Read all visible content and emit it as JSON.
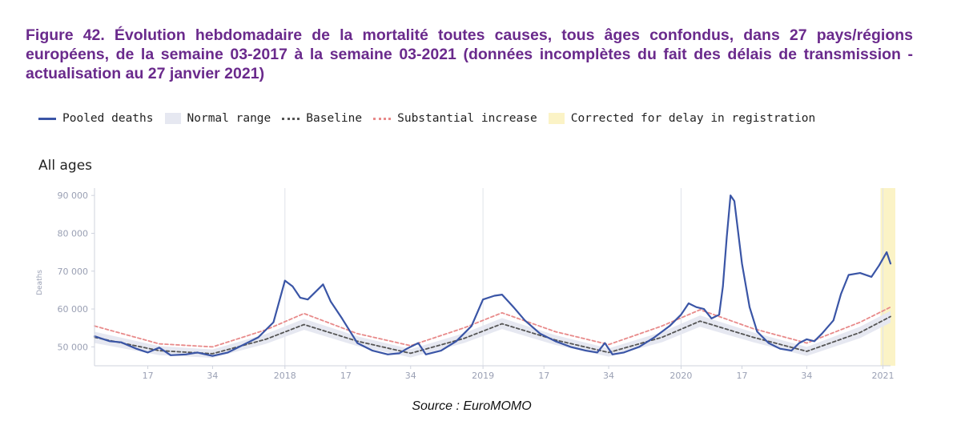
{
  "figure": {
    "title": "Figure 42. Évolution hebdomadaire de la mortalité toutes causes, tous âges confondus, dans 27 pays/régions européens, de la semaine 03-2017 à la semaine 03-2021 (données incomplètes du fait des délais de transmission - actualisation au 27 janvier 2021)",
    "source": "Source : EuroMOMO"
  },
  "legend": {
    "pooled": "Pooled deaths",
    "normal": "Normal range",
    "baseline": "Baseline",
    "substantial": "Substantial increase",
    "corrected": "Corrected for delay in registration"
  },
  "colors": {
    "pooled": "#3a55a6",
    "baseline": "#555555",
    "substantial": "#e88a8a",
    "normal": "#e6e8f1",
    "corrected": "#fbf3c6"
  },
  "chart_data": {
    "type": "line",
    "title": "All ages",
    "ylabel": "Deaths",
    "xlabel": "",
    "ylim": [
      45000,
      93000
    ],
    "x_unit": "ISO week (year-week)",
    "x_range": [
      "2017-03",
      "2021-03"
    ],
    "y_ticks": [
      50000,
      60000,
      70000,
      80000,
      90000
    ],
    "y_tick_labels": [
      "50 000",
      "60 000",
      "70 000",
      "80 000",
      "90 000"
    ],
    "x_tick_labels": [
      {
        "x": "2017-17",
        "label": "17"
      },
      {
        "x": "2017-34",
        "label": "34"
      },
      {
        "x": "2018-01",
        "label": "2018"
      },
      {
        "x": "2018-17",
        "label": "17"
      },
      {
        "x": "2018-34",
        "label": "34"
      },
      {
        "x": "2019-01",
        "label": "2019"
      },
      {
        "x": "2019-17",
        "label": "17"
      },
      {
        "x": "2019-34",
        "label": "34"
      },
      {
        "x": "2020-01",
        "label": "2020"
      },
      {
        "x": "2020-17",
        "label": "17"
      },
      {
        "x": "2020-34",
        "label": "34"
      },
      {
        "x": "2021-01",
        "label": "2021"
      }
    ],
    "grid": "vertical lines at year starts",
    "legend_position": "top",
    "corrected_region": [
      "2021-01",
      "2021-03"
    ],
    "series": [
      {
        "name": "Pooled deaths",
        "points": [
          [
            "2017-03",
            52800
          ],
          [
            "2017-07",
            51500
          ],
          [
            "2017-10",
            51200
          ],
          [
            "2017-14",
            49500
          ],
          [
            "2017-17",
            48500
          ],
          [
            "2017-20",
            49800
          ],
          [
            "2017-23",
            47800
          ],
          [
            "2017-27",
            48000
          ],
          [
            "2017-30",
            48500
          ],
          [
            "2017-34",
            47600
          ],
          [
            "2017-38",
            48500
          ],
          [
            "2017-42",
            50500
          ],
          [
            "2017-46",
            52500
          ],
          [
            "2017-50",
            56500
          ],
          [
            "2018-01",
            67500
          ],
          [
            "2018-03",
            66000
          ],
          [
            "2018-05",
            63000
          ],
          [
            "2018-07",
            62500
          ],
          [
            "2018-09",
            64500
          ],
          [
            "2018-11",
            66500
          ],
          [
            "2018-13",
            62000
          ],
          [
            "2018-16",
            57500
          ],
          [
            "2018-20",
            51000
          ],
          [
            "2018-24",
            49000
          ],
          [
            "2018-28",
            48000
          ],
          [
            "2018-31",
            48300
          ],
          [
            "2018-33",
            49500
          ],
          [
            "2018-36",
            51000
          ],
          [
            "2018-38",
            48000
          ],
          [
            "2018-42",
            49000
          ],
          [
            "2018-46",
            51500
          ],
          [
            "2018-50",
            55500
          ],
          [
            "2019-01",
            62500
          ],
          [
            "2019-04",
            63500
          ],
          [
            "2019-06",
            63800
          ],
          [
            "2019-09",
            60500
          ],
          [
            "2019-12",
            57000
          ],
          [
            "2019-16",
            53500
          ],
          [
            "2019-20",
            51500
          ],
          [
            "2019-24",
            50000
          ],
          [
            "2019-28",
            49000
          ],
          [
            "2019-31",
            48500
          ],
          [
            "2019-33",
            51000
          ],
          [
            "2019-35",
            48000
          ],
          [
            "2019-38",
            48500
          ],
          [
            "2019-42",
            50000
          ],
          [
            "2019-46",
            52500
          ],
          [
            "2019-50",
            55500
          ],
          [
            "2020-01",
            58500
          ],
          [
            "2020-03",
            61500
          ],
          [
            "2020-05",
            60500
          ],
          [
            "2020-07",
            60000
          ],
          [
            "2020-09",
            57500
          ],
          [
            "2020-11",
            58500
          ],
          [
            "2020-12",
            66000
          ],
          [
            "2020-13",
            79000
          ],
          [
            "2020-14",
            90000
          ],
          [
            "2020-15",
            88500
          ],
          [
            "2020-17",
            72000
          ],
          [
            "2020-19",
            60500
          ],
          [
            "2020-21",
            54000
          ],
          [
            "2020-24",
            51000
          ],
          [
            "2020-27",
            49500
          ],
          [
            "2020-30",
            49000
          ],
          [
            "2020-32",
            51000
          ],
          [
            "2020-34",
            52000
          ],
          [
            "2020-36",
            51500
          ],
          [
            "2020-38",
            53500
          ],
          [
            "2020-41",
            57000
          ],
          [
            "2020-43",
            64000
          ],
          [
            "2020-45",
            69000
          ],
          [
            "2020-48",
            69500
          ],
          [
            "2020-51",
            68500
          ],
          [
            "2020-53",
            71500
          ],
          [
            "2021-02",
            75000
          ],
          [
            "2021-03",
            72000
          ]
        ]
      },
      {
        "name": "Baseline",
        "points": [
          [
            "2017-03",
            52500
          ],
          [
            "2017-20",
            49000
          ],
          [
            "2017-34",
            48200
          ],
          [
            "2017-48",
            52000
          ],
          [
            "2018-06",
            55900
          ],
          [
            "2018-20",
            51500
          ],
          [
            "2018-34",
            48300
          ],
          [
            "2018-48",
            52200
          ],
          [
            "2019-06",
            56100
          ],
          [
            "2019-20",
            51800
          ],
          [
            "2019-34",
            48500
          ],
          [
            "2019-48",
            52500
          ],
          [
            "2020-06",
            56800
          ],
          [
            "2020-20",
            52500
          ],
          [
            "2020-34",
            48800
          ],
          [
            "2020-48",
            53800
          ],
          [
            "2021-03",
            58000
          ]
        ]
      },
      {
        "name": "Substantial increase",
        "points": [
          [
            "2017-03",
            55500
          ],
          [
            "2017-20",
            50800
          ],
          [
            "2017-34",
            50000
          ],
          [
            "2017-48",
            54500
          ],
          [
            "2018-06",
            58800
          ],
          [
            "2018-20",
            53500
          ],
          [
            "2018-34",
            50300
          ],
          [
            "2018-48",
            55000
          ],
          [
            "2019-06",
            59000
          ],
          [
            "2019-20",
            54000
          ],
          [
            "2019-34",
            50600
          ],
          [
            "2019-48",
            55500
          ],
          [
            "2020-06",
            59800
          ],
          [
            "2020-20",
            54800
          ],
          [
            "2020-34",
            51000
          ],
          [
            "2020-48",
            56500
          ],
          [
            "2021-03",
            60500
          ]
        ]
      },
      {
        "name": "Normal range",
        "band": [
          [
            "2017-03",
            51000,
            54000
          ],
          [
            "2017-20",
            47800,
            50200
          ],
          [
            "2017-34",
            47100,
            49300
          ],
          [
            "2017-48",
            50800,
            53400
          ],
          [
            "2018-06",
            54500,
            57400
          ],
          [
            "2018-20",
            50200,
            52800
          ],
          [
            "2018-34",
            47200,
            49400
          ],
          [
            "2018-48",
            51000,
            53600
          ],
          [
            "2019-06",
            54700,
            57600
          ],
          [
            "2019-20",
            50500,
            53100
          ],
          [
            "2019-34",
            47400,
            49600
          ],
          [
            "2019-48",
            51200,
            53900
          ],
          [
            "2020-06",
            55300,
            58300
          ],
          [
            "2020-20",
            51200,
            53800
          ],
          [
            "2020-34",
            47600,
            50000
          ],
          [
            "2020-48",
            52300,
            55300
          ],
          [
            "2021-03",
            56400,
            59500
          ]
        ]
      }
    ]
  }
}
